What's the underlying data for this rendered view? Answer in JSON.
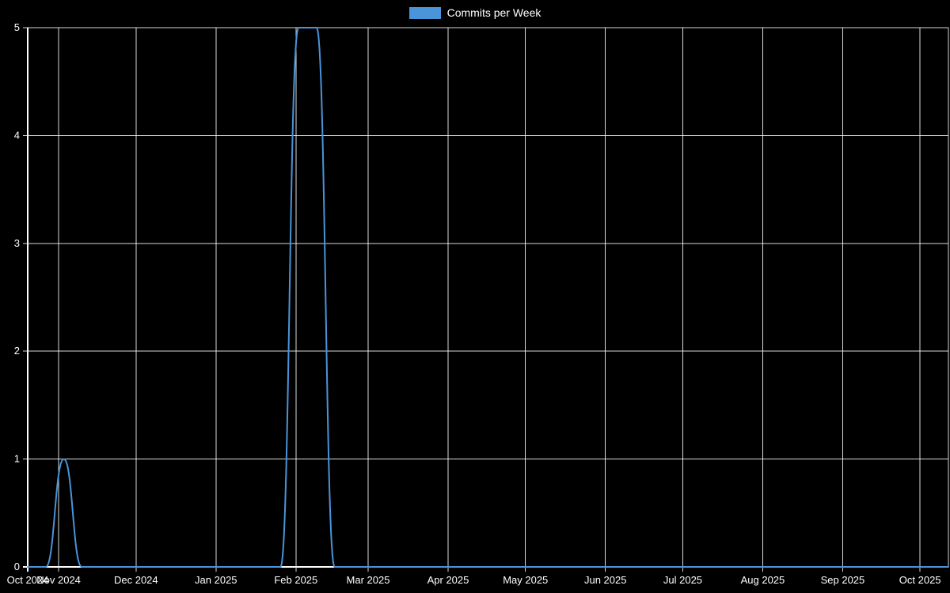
{
  "chart_data": {
    "type": "line",
    "title": "",
    "xlabel": "",
    "ylabel": "",
    "ylim": [
      0,
      5
    ],
    "yticks": [
      0,
      1,
      2,
      3,
      4,
      5
    ],
    "grid": true,
    "legend": {
      "position": "top",
      "items": [
        {
          "label": "Commits per Week",
          "color": "#4a94d9"
        }
      ]
    },
    "colors": {
      "background": "#000000",
      "grid": "#ffffff",
      "text": "#ffffff",
      "line": "#4a94d9"
    },
    "x_domain": [
      "2024-10-20",
      "2025-10-12"
    ],
    "xticks": [
      {
        "label": "Oct 2024",
        "date": "2024-10-20"
      },
      {
        "label": "Nov 2024",
        "date": "2024-11-01"
      },
      {
        "label": "Dec 2024",
        "date": "2024-12-01"
      },
      {
        "label": "Jan 2025",
        "date": "2025-01-01"
      },
      {
        "label": "Feb 2025",
        "date": "2025-02-01"
      },
      {
        "label": "Mar 2025",
        "date": "2025-03-01"
      },
      {
        "label": "Apr 2025",
        "date": "2025-04-01"
      },
      {
        "label": "May 2025",
        "date": "2025-05-01"
      },
      {
        "label": "Jun 2025",
        "date": "2025-06-01"
      },
      {
        "label": "Jul 2025",
        "date": "2025-07-01"
      },
      {
        "label": "Aug 2025",
        "date": "2025-08-01"
      },
      {
        "label": "Sep 2025",
        "date": "2025-09-01"
      },
      {
        "label": "Oct 2025",
        "date": "2025-10-01"
      }
    ],
    "x": [
      "2024-10-20",
      "2024-10-27",
      "2024-11-03",
      "2024-11-10",
      "2024-11-17",
      "2024-11-24",
      "2024-12-01",
      "2024-12-08",
      "2024-12-15",
      "2024-12-22",
      "2024-12-29",
      "2025-01-05",
      "2025-01-12",
      "2025-01-19",
      "2025-01-26",
      "2025-02-02",
      "2025-02-09",
      "2025-02-16",
      "2025-02-23",
      "2025-03-02",
      "2025-03-09",
      "2025-03-16",
      "2025-03-23",
      "2025-03-30",
      "2025-04-06",
      "2025-04-13",
      "2025-04-20",
      "2025-04-27",
      "2025-05-04",
      "2025-05-11",
      "2025-05-18",
      "2025-05-25",
      "2025-06-01",
      "2025-06-08",
      "2025-06-15",
      "2025-06-22",
      "2025-06-29",
      "2025-07-06",
      "2025-07-13",
      "2025-07-20",
      "2025-07-27",
      "2025-08-03",
      "2025-08-10",
      "2025-08-17",
      "2025-08-24",
      "2025-08-31",
      "2025-09-07",
      "2025-09-14",
      "2025-09-21",
      "2025-09-28",
      "2025-10-05",
      "2025-10-12"
    ],
    "series": [
      {
        "name": "Commits per Week",
        "color": "#4a94d9",
        "values": [
          0,
          0,
          1,
          0,
          0,
          0,
          0,
          0,
          0,
          0,
          0,
          0,
          0,
          0,
          0,
          5,
          5,
          0,
          0,
          0,
          0,
          0,
          0,
          0,
          0,
          0,
          0,
          0,
          0,
          0,
          0,
          0,
          0,
          0,
          0,
          0,
          0,
          0,
          0,
          0,
          0,
          0,
          0,
          0,
          0,
          0,
          0,
          0,
          0,
          0,
          0,
          0
        ]
      }
    ]
  }
}
